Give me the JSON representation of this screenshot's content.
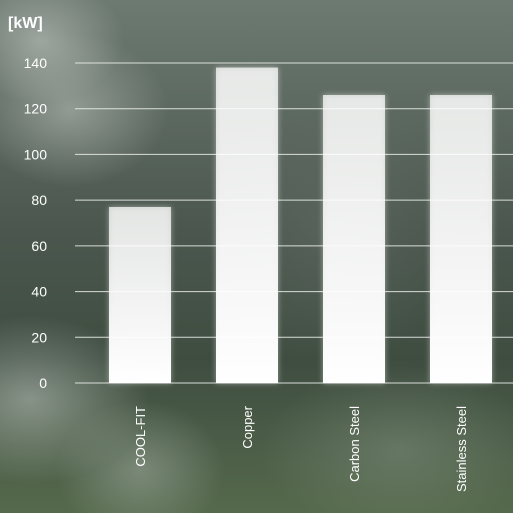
{
  "chart_data": {
    "type": "bar",
    "unit": "[kW]",
    "categories": [
      "COOL-FIT",
      "Copper",
      "Carbon Steel",
      "Stainless Steel"
    ],
    "values": [
      77,
      138,
      126,
      126
    ],
    "ylim": [
      0,
      140
    ],
    "yticks": [
      0,
      20,
      40,
      60,
      80,
      100,
      120,
      140
    ],
    "grid": true,
    "bar_color": "#ffffff",
    "grid_color": "#e9ece9",
    "text_color": "#ffffff"
  }
}
